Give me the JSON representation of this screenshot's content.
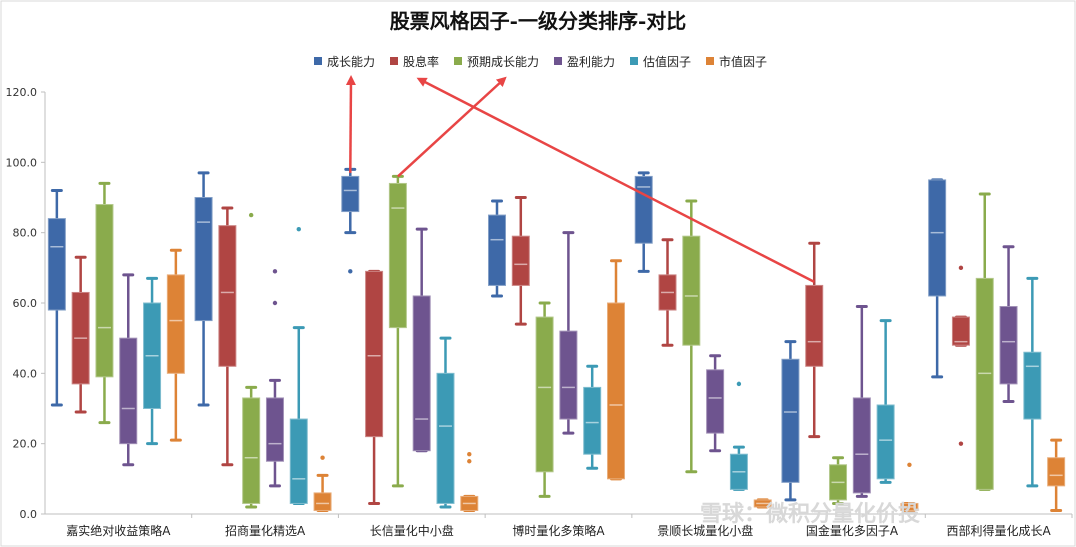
{
  "chart_data": {
    "type": "box",
    "title": "股票风格因子-一级分类排序-对比",
    "ylim": [
      0,
      120
    ],
    "yticks": [
      "0.0",
      "20.0",
      "40.0",
      "60.0",
      "80.0",
      "100.0",
      "120.0"
    ],
    "grid": false,
    "legend": "top",
    "categories": [
      "嘉实绝对收益策略A",
      "招商量化精选A",
      "长信量化中小盘",
      "博时量化多策略A",
      "景顺长城量化小盘",
      "国金量化多因子A",
      "西部利得量化成长A"
    ],
    "series": [
      {
        "name": "成长能力",
        "color": "#3e69a8",
        "boxes": [
          {
            "min": 31,
            "q1": 58,
            "median": 76,
            "q3": 84,
            "max": 92,
            "outliers": []
          },
          {
            "min": 31,
            "q1": 55,
            "median": 83,
            "q3": 90,
            "max": 97,
            "outliers": []
          },
          {
            "min": 80,
            "q1": 86,
            "median": 92,
            "q3": 96,
            "max": 98,
            "outliers": [
              69
            ]
          },
          {
            "min": 62,
            "q1": 65,
            "median": 78,
            "q3": 85,
            "max": 89,
            "outliers": []
          },
          {
            "min": 69,
            "q1": 77,
            "median": 93,
            "q3": 96,
            "max": 97,
            "outliers": []
          },
          {
            "min": 4,
            "q1": 9,
            "median": 29,
            "q3": 44,
            "max": 49,
            "outliers": []
          },
          {
            "min": 39,
            "q1": 62,
            "median": 80,
            "q3": 95,
            "max": 95,
            "outliers": []
          }
        ]
      },
      {
        "name": "股息率",
        "color": "#b04543",
        "boxes": [
          {
            "min": 29,
            "q1": 37,
            "median": 50,
            "q3": 63,
            "max": 73,
            "outliers": []
          },
          {
            "min": 14,
            "q1": 42,
            "median": 63,
            "q3": 82,
            "max": 87,
            "outliers": []
          },
          {
            "min": 3,
            "q1": 22,
            "median": 45,
            "q3": 69,
            "max": 69,
            "outliers": []
          },
          {
            "min": 54,
            "q1": 65,
            "median": 71,
            "q3": 79,
            "max": 90,
            "outliers": []
          },
          {
            "min": 48,
            "q1": 58,
            "median": 63,
            "q3": 68,
            "max": 78,
            "outliers": []
          },
          {
            "min": 22,
            "q1": 42,
            "median": 49,
            "q3": 65,
            "max": 77,
            "outliers": []
          },
          {
            "min": 48,
            "q1": 48,
            "median": 49,
            "q3": 56,
            "max": 56,
            "outliers": [
              70,
              20
            ]
          }
        ]
      },
      {
        "name": "预期成长能力",
        "color": "#8aab4c",
        "boxes": [
          {
            "min": 26,
            "q1": 39,
            "median": 53,
            "q3": 88,
            "max": 94,
            "outliers": []
          },
          {
            "min": 2,
            "q1": 3,
            "median": 16,
            "q3": 33,
            "max": 36,
            "outliers": [
              85
            ]
          },
          {
            "min": 8,
            "q1": 53,
            "median": 87,
            "q3": 94,
            "max": 96,
            "outliers": []
          },
          {
            "min": 5,
            "q1": 12,
            "median": 36,
            "q3": 56,
            "max": 60,
            "outliers": []
          },
          {
            "min": 12,
            "q1": 48,
            "median": 62,
            "q3": 79,
            "max": 89,
            "outliers": []
          },
          {
            "min": 3,
            "q1": 4,
            "median": 9,
            "q3": 14,
            "max": 16,
            "outliers": []
          },
          {
            "min": 7,
            "q1": 7,
            "median": 40,
            "q3": 67,
            "max": 91,
            "outliers": []
          }
        ]
      },
      {
        "name": "盈利能力",
        "color": "#6e548f",
        "boxes": [
          {
            "min": 14,
            "q1": 20,
            "median": 30,
            "q3": 50,
            "max": 68,
            "outliers": []
          },
          {
            "min": 8,
            "q1": 15,
            "median": 20,
            "q3": 33,
            "max": 38,
            "outliers": [
              69,
              60
            ]
          },
          {
            "min": 18,
            "q1": 18,
            "median": 27,
            "q3": 62,
            "max": 81,
            "outliers": []
          },
          {
            "min": 23,
            "q1": 27,
            "median": 36,
            "q3": 52,
            "max": 80,
            "outliers": []
          },
          {
            "min": 18,
            "q1": 23,
            "median": 33,
            "q3": 41,
            "max": 45,
            "outliers": []
          },
          {
            "min": 5,
            "q1": 6,
            "median": 17,
            "q3": 33,
            "max": 59,
            "outliers": []
          },
          {
            "min": 32,
            "q1": 37,
            "median": 49,
            "q3": 59,
            "max": 76,
            "outliers": []
          }
        ]
      },
      {
        "name": "估值因子",
        "color": "#3c9ab5",
        "boxes": [
          {
            "min": 20,
            "q1": 30,
            "median": 45,
            "q3": 60,
            "max": 67,
            "outliers": []
          },
          {
            "min": 3,
            "q1": 3,
            "median": 10,
            "q3": 27,
            "max": 53,
            "outliers": [
              81
            ]
          },
          {
            "min": 2,
            "q1": 3,
            "median": 25,
            "q3": 40,
            "max": 50,
            "outliers": []
          },
          {
            "min": 13,
            "q1": 17,
            "median": 26,
            "q3": 36,
            "max": 42,
            "outliers": []
          },
          {
            "min": 7,
            "q1": 7,
            "median": 12,
            "q3": 17,
            "max": 19,
            "outliers": [
              37
            ]
          },
          {
            "min": 9,
            "q1": 10,
            "median": 21,
            "q3": 31,
            "max": 55,
            "outliers": []
          },
          {
            "min": 8,
            "q1": 27,
            "median": 42,
            "q3": 46,
            "max": 67,
            "outliers": []
          }
        ]
      },
      {
        "name": "市值因子",
        "color": "#dd8336",
        "boxes": [
          {
            "min": 21,
            "q1": 40,
            "median": 55,
            "q3": 68,
            "max": 75,
            "outliers": []
          },
          {
            "min": 1,
            "q1": 1,
            "median": 3,
            "q3": 6,
            "max": 11,
            "outliers": [
              16
            ]
          },
          {
            "min": 1,
            "q1": 1,
            "median": 3,
            "q3": 5,
            "max": 5,
            "outliers": [
              17,
              15
            ]
          },
          {
            "min": 10,
            "q1": 10,
            "median": 31,
            "q3": 60,
            "max": 72,
            "outliers": []
          },
          {
            "min": 2,
            "q1": 2,
            "median": 3,
            "q3": 4,
            "max": 4,
            "outliers": []
          },
          {
            "min": 1,
            "q1": 1,
            "median": 2,
            "q3": 3,
            "max": 3,
            "outliers": [
              14
            ]
          },
          {
            "min": 1,
            "q1": 8,
            "median": 11,
            "q3": 16,
            "max": 21,
            "outliers": []
          }
        ]
      }
    ],
    "annotations": [
      {
        "type": "arrow",
        "color": "#e84545",
        "from": {
          "category": 2,
          "series": 0,
          "value": 97
        },
        "to": "legend:0"
      },
      {
        "type": "arrow",
        "color": "#e84545",
        "from": {
          "category": 2,
          "series": 2,
          "value": 96
        },
        "to": "legend:2"
      },
      {
        "type": "arrow",
        "color": "#e84545",
        "from": {
          "category": 5,
          "series": 1,
          "value": 66
        },
        "to": "legend:1"
      }
    ],
    "watermark": "雪球：微积分量化价投"
  }
}
